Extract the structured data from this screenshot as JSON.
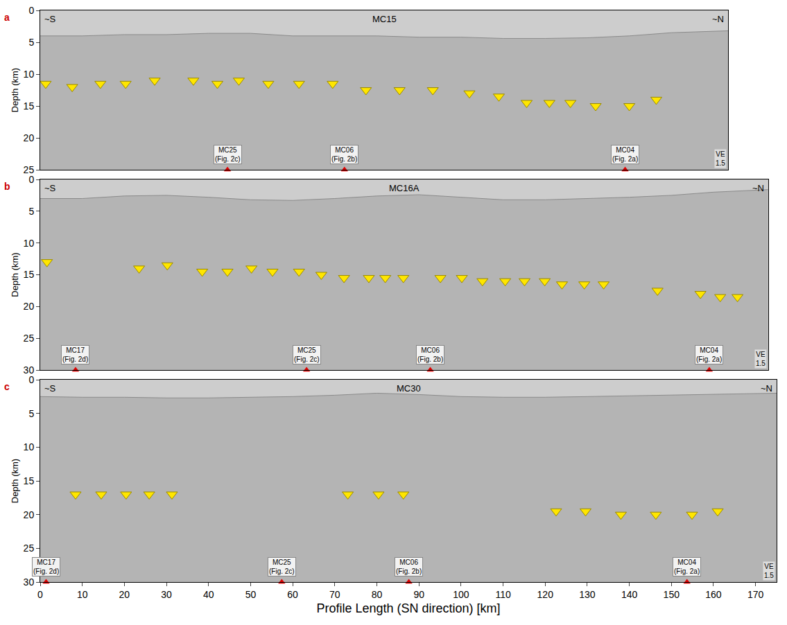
{
  "chart_data": {
    "type": "scatter",
    "x_label": "Profile Length (SN direction) [km]",
    "xlim": [
      0,
      175
    ],
    "xticks": [
      0,
      10,
      20,
      30,
      40,
      50,
      60,
      70,
      80,
      90,
      100,
      110,
      120,
      130,
      140,
      150,
      160,
      170
    ],
    "panels": [
      {
        "letter": "a",
        "title": "MC15",
        "left": "~S",
        "right": "~N",
        "ve": "VE 1.5",
        "y_label": "Depth (km)",
        "tick_labels": "y",
        "xlim": [
          0,
          163.5
        ],
        "ylim": [
          0,
          25
        ],
        "yticks": [
          0,
          5,
          10,
          15,
          20,
          25
        ],
        "seafloor": {
          "x": [
            0,
            10,
            20,
            30,
            40,
            50,
            60,
            70,
            80,
            90,
            100,
            110,
            120,
            130,
            140,
            150,
            163.5
          ],
          "y": [
            4,
            4,
            3.8,
            3.8,
            3.6,
            3.6,
            4,
            4,
            4,
            4.2,
            4.2,
            4.4,
            4.4,
            4.3,
            4,
            3.5,
            3.2
          ]
        },
        "arrows": {
          "color": "#ffe600",
          "marker": "triangle-down",
          "x": [
            1.3,
            7.6,
            14.3,
            20.3,
            27.2,
            36.4,
            42.1,
            47.2,
            54.2,
            61.5,
            69.5,
            77.4,
            85.4,
            93.3,
            102,
            109,
            115.6,
            121,
            126,
            132,
            140,
            146.4
          ],
          "y": [
            11.5,
            12,
            11.5,
            11.5,
            11,
            11,
            11.5,
            11,
            11.5,
            11.5,
            11.5,
            12.5,
            12.5,
            12.5,
            13,
            13.5,
            14.5,
            14.5,
            14.5,
            15,
            15,
            14
          ]
        },
        "crossings": [
          {
            "x": 44.5,
            "name": "MC25",
            "fig": "(Fig. 2c)"
          },
          {
            "x": 72.3,
            "name": "MC06",
            "fig": "(Fig. 2b)"
          },
          {
            "x": 139,
            "name": "MC04",
            "fig": "(Fig. 2a)"
          }
        ]
      },
      {
        "letter": "b",
        "title": "MC16A",
        "left": "~S",
        "right": "~N",
        "ve": "VE 1.5",
        "y_label": "Depth (km)",
        "tick_labels": "y",
        "xlim": [
          0,
          173
        ],
        "ylim": [
          0,
          30
        ],
        "yticks": [
          0,
          5,
          10,
          15,
          20,
          25,
          30
        ],
        "seafloor": {
          "x": [
            0,
            10,
            20,
            30,
            40,
            50,
            60,
            70,
            80,
            90,
            100,
            110,
            120,
            130,
            140,
            150,
            160,
            173
          ],
          "y": [
            3,
            3,
            2.6,
            2.5,
            2.8,
            3.2,
            3.3,
            3,
            2.6,
            2.4,
            2.8,
            3.2,
            3.2,
            3,
            2.8,
            2.5,
            2,
            1.6
          ]
        },
        "arrows": {
          "color": "#ffe600",
          "marker": "triangle-down",
          "x": [
            1.6,
            23.5,
            30.2,
            38.5,
            44.5,
            50.2,
            55.2,
            61.5,
            66.8,
            72.2,
            78.1,
            82,
            86.3,
            95.1,
            100.2,
            105.1,
            110.5,
            115.1,
            119.9,
            124,
            129.3,
            133.9,
            146.7,
            156.9,
            161.6,
            165.7
          ],
          "y": [
            13,
            14,
            13.5,
            14.5,
            14.5,
            14,
            14.5,
            14.5,
            15,
            15.5,
            15.5,
            15.5,
            15.5,
            15.5,
            15.5,
            16,
            16,
            16,
            16,
            16.5,
            16.5,
            16.5,
            17.5,
            18,
            18.5,
            18.5
          ]
        },
        "crossings": [
          {
            "x": 8.4,
            "name": "MC17",
            "fig": "(Fig. 2d)"
          },
          {
            "x": 63.3,
            "name": "MC25",
            "fig": "(Fig. 2c)"
          },
          {
            "x": 92.7,
            "name": "MC06",
            "fig": "(Fig. 2b)"
          },
          {
            "x": 159,
            "name": "MC04",
            "fig": "(Fig. 2a)"
          }
        ]
      },
      {
        "letter": "c",
        "title": "MC30",
        "left": "~S",
        "right": "~N",
        "ve": "VE 1.5",
        "y_label": "Depth (km)",
        "xlim": [
          0,
          175
        ],
        "ylim": [
          0,
          30
        ],
        "yticks": [
          0,
          5,
          10,
          15,
          20,
          25,
          30
        ],
        "seafloor": {
          "x": [
            0,
            10,
            20,
            30,
            40,
            50,
            60,
            70,
            80,
            90,
            100,
            110,
            120,
            130,
            140,
            150,
            160,
            175
          ],
          "y": [
            2.5,
            2.6,
            2.6,
            2.7,
            2.7,
            2.6,
            2.5,
            2.3,
            2,
            2.2,
            2.5,
            2.6,
            2.6,
            2.5,
            2.4,
            2.3,
            2.2,
            2
          ]
        },
        "arrows": {
          "color": "#ffe600",
          "marker": "triangle-down",
          "x": [
            8.4,
            14.5,
            20.4,
            25.9,
            31.3,
            73.1,
            80.4,
            86.3,
            122.6,
            129.6,
            138,
            146.3,
            154.9,
            161
          ],
          "y": [
            17,
            17,
            17,
            17,
            17,
            17,
            17,
            17,
            19.5,
            19.5,
            20,
            20,
            20,
            19.5
          ]
        },
        "crossings": [
          {
            "x": 1.4,
            "name": "MC17",
            "fig": "(Fig. 2d)"
          },
          {
            "x": 57.4,
            "name": "MC25",
            "fig": "(Fig. 2c)"
          },
          {
            "x": 87.6,
            "name": "MC06",
            "fig": "(Fig. 2b)"
          },
          {
            "x": 153.7,
            "name": "MC04",
            "fig": "(Fig. 2a)"
          }
        ]
      }
    ]
  }
}
